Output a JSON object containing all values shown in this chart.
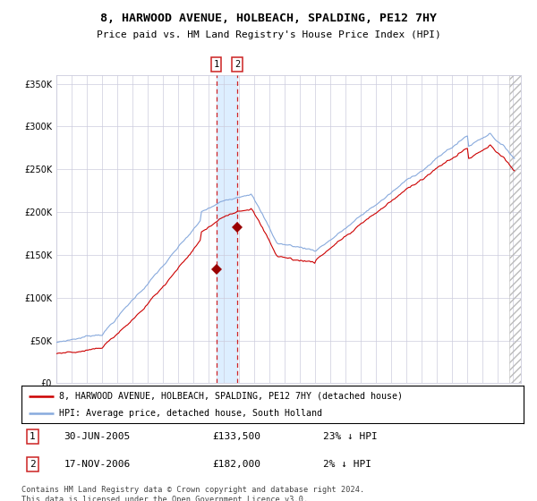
{
  "title": "8, HARWOOD AVENUE, HOLBEACH, SPALDING, PE12 7HY",
  "subtitle": "Price paid vs. HM Land Registry's House Price Index (HPI)",
  "ylim": [
    0,
    360000
  ],
  "yticks": [
    0,
    50000,
    100000,
    150000,
    200000,
    250000,
    300000,
    350000
  ],
  "purchase1_date_num": 2005.5,
  "purchase2_date_num": 2006.88,
  "purchase1_price": 133500,
  "purchase2_price": 182000,
  "legend_house": "8, HARWOOD AVENUE, HOLBEACH, SPALDING, PE12 7HY (detached house)",
  "legend_hpi": "HPI: Average price, detached house, South Holland",
  "footer": "Contains HM Land Registry data © Crown copyright and database right 2024.\nThis data is licensed under the Open Government Licence v3.0.",
  "house_color": "#cc0000",
  "hpi_color": "#88aadd",
  "grid_color": "#ccccdd",
  "marker_color": "#990000",
  "shade_color": "#ddeeff",
  "table_rows": [
    [
      "1",
      "30-JUN-2005",
      "£133,500",
      "23% ↓ HPI"
    ],
    [
      "2",
      "17-NOV-2006",
      "£182,000",
      "2% ↓ HPI"
    ]
  ],
  "hatch_color": "#cccccc"
}
